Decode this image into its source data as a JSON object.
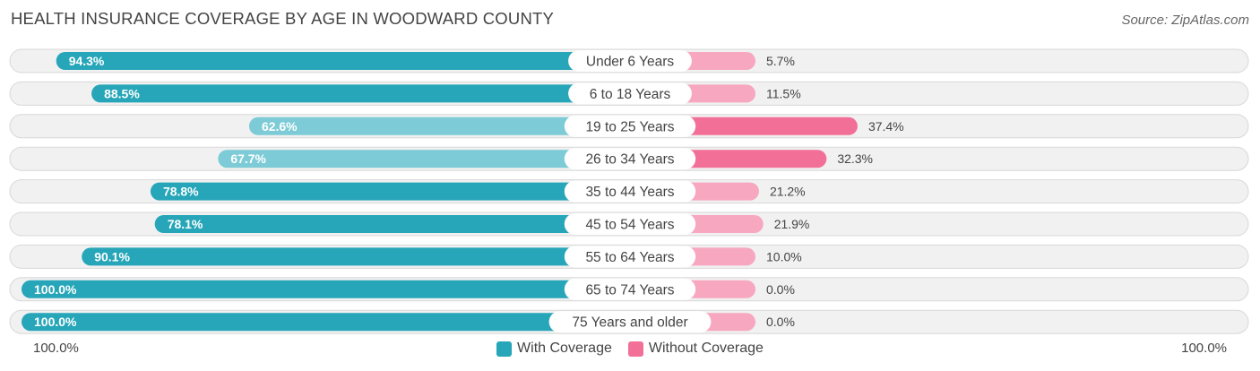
{
  "title": "HEALTH INSURANCE COVERAGE BY AGE IN WOODWARD COUNTY",
  "source": "Source: ZipAtlas.com",
  "footer": {
    "left_label": "100.0%",
    "right_label": "100.0%"
  },
  "colors": {
    "with_dark": "#26a6b8",
    "with_light": "#7ccbd6",
    "without_dark": "#f27097",
    "without_light": "#f7a7bf"
  },
  "chart_data": {
    "type": "bar",
    "orientation": "horizontal-diverging",
    "title": "HEALTH INSURANCE COVERAGE BY AGE IN WOODWARD COUNTY",
    "categories": [
      "Under 6 Years",
      "6 to 18 Years",
      "19 to 25 Years",
      "26 to 34 Years",
      "35 to 44 Years",
      "45 to 54 Years",
      "55 to 64 Years",
      "65 to 74 Years",
      "75 Years and older"
    ],
    "series": [
      {
        "name": "With Coverage",
        "values": [
          94.3,
          88.5,
          62.6,
          67.7,
          78.8,
          78.1,
          90.1,
          100.0,
          100.0
        ],
        "labels": [
          "94.3%",
          "88.5%",
          "62.6%",
          "67.7%",
          "78.8%",
          "78.1%",
          "90.1%",
          "100.0%",
          "100.0%"
        ]
      },
      {
        "name": "Without Coverage",
        "values": [
          5.7,
          11.5,
          37.4,
          32.3,
          21.2,
          21.9,
          10.0,
          0.0,
          0.0
        ],
        "labels": [
          "5.7%",
          "11.5%",
          "37.4%",
          "32.3%",
          "21.2%",
          "21.9%",
          "10.0%",
          "0.0%",
          "0.0%"
        ]
      }
    ],
    "xlim": [
      -100,
      100
    ],
    "legend": [
      "With Coverage",
      "Without Coverage"
    ],
    "legend_position": "bottom-center"
  }
}
